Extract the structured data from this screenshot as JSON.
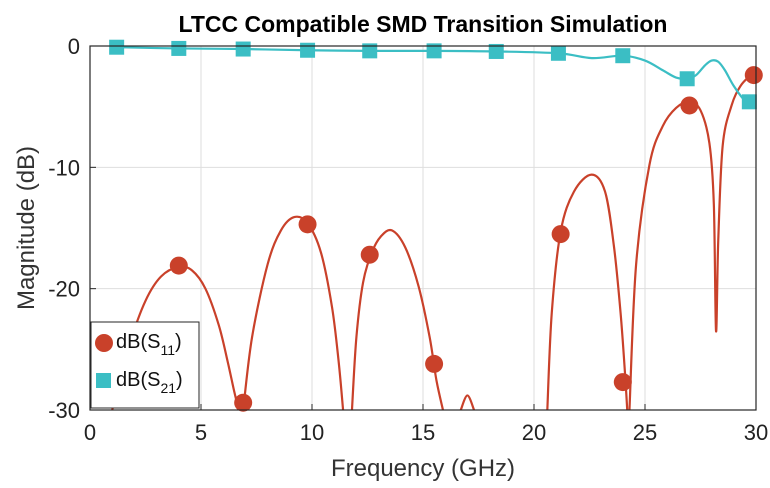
{
  "chart_data": {
    "type": "line",
    "title": "LTCC Compatible SMD Transition Simulation",
    "xlabel": "Frequency (GHz)",
    "ylabel": "Magnitude (dB)",
    "xlim": [
      0,
      30
    ],
    "ylim": [
      -30,
      0
    ],
    "xticks": [
      "0",
      "5",
      "10",
      "15",
      "20",
      "25",
      "30"
    ],
    "yticks": [
      "0",
      "-10",
      "-20",
      "-30"
    ],
    "grid": true,
    "legend_position": "bottom-left",
    "colors": {
      "s11": "#c9412a",
      "s21": "#3bbec4"
    },
    "series": [
      {
        "name": "dB(S11)",
        "legend_main": "dB(S",
        "legend_sub": "11",
        "legend_close": ")",
        "marker": "circle",
        "color": "#c9412a",
        "segments": [
          {
            "x": [
              1.0,
              1.8,
              2.5,
              3.2,
              4.0,
              4.6,
              5.2,
              5.8,
              6.2,
              6.5,
              6.7
            ],
            "y": [
              -30,
              -24.5,
              -21.0,
              -19.0,
              -18.2,
              -18.5,
              -20.0,
              -23.0,
              -26.0,
              -28.5,
              -30
            ]
          },
          {
            "x": [
              6.9,
              7.3,
              8.0,
              8.6,
              9.2,
              9.8,
              10.4,
              10.9,
              11.2,
              11.4
            ],
            "y": [
              -30,
              -24.0,
              -18.0,
              -15.2,
              -14.1,
              -14.6,
              -17.0,
              -21.5,
              -26.0,
              -30
            ]
          },
          {
            "x": [
              11.8,
              12.0,
              12.3,
              12.7,
              13.1,
              13.6,
              14.2,
              14.8,
              15.3,
              15.6,
              15.9
            ],
            "y": [
              -30,
              -24.0,
              -19.5,
              -17.0,
              -15.7,
              -15.2,
              -16.6,
              -19.8,
              -24.0,
              -27.5,
              -30
            ]
          },
          {
            "x": [
              16.7,
              17.0,
              17.3
            ],
            "y": [
              -30,
              -28.8,
              -30
            ]
          },
          {
            "x": [
              20.6,
              20.8,
              21.2,
              21.8,
              22.6,
              23.2,
              23.6,
              23.9,
              24.1,
              24.2
            ],
            "y": [
              -30,
              -22.0,
              -15.3,
              -12.0,
              -10.6,
              -12.0,
              -16.5,
              -22.0,
              -27.0,
              -30
            ]
          },
          {
            "x": [
              24.3,
              24.6,
              25.2,
              25.8,
              26.4,
              27.0,
              27.5,
              27.9,
              28.1,
              28.2,
              28.3,
              28.5,
              28.9,
              29.3,
              29.7,
              30.0
            ],
            "y": [
              -30,
              -18.0,
              -9.8,
              -6.6,
              -5.1,
              -4.6,
              -5.3,
              -8.0,
              -13.0,
              -23.5,
              -16.0,
              -8.2,
              -4.9,
              -3.3,
              -2.5,
              -2.0
            ]
          }
        ],
        "markers": {
          "x": [
            4.0,
            6.9,
            9.8,
            12.6,
            15.5,
            21.2,
            24.0,
            27.0,
            29.9
          ],
          "y": [
            -18.1,
            -29.4,
            -14.7,
            -17.2,
            -26.2,
            -15.5,
            -27.7,
            -4.9,
            -2.4
          ]
        }
      },
      {
        "name": "dB(S21)",
        "legend_main": "dB(S",
        "legend_sub": "21",
        "legend_close": ")",
        "marker": "square",
        "color": "#3bbec4",
        "segments": [
          {
            "x": [
              1.2,
              4.0,
              6.9,
              9.8,
              12.6,
              15.5,
              18.3,
              21.1,
              22.6,
              24.0,
              25.0,
              25.8,
              26.4,
              26.9,
              27.3,
              27.7,
              28.0,
              28.3,
              28.6,
              29.0,
              29.5,
              30.0
            ],
            "y": [
              -0.1,
              -0.2,
              -0.25,
              -0.35,
              -0.4,
              -0.4,
              -0.45,
              -0.6,
              -1.0,
              -0.8,
              -1.2,
              -2.0,
              -2.6,
              -2.7,
              -2.4,
              -1.6,
              -1.2,
              -1.3,
              -2.0,
              -3.3,
              -4.5,
              -5.0
            ]
          }
        ],
        "markers": {
          "x": [
            1.2,
            4.0,
            6.9,
            9.8,
            12.6,
            15.5,
            18.3,
            21.1,
            24.0,
            26.9,
            29.7
          ],
          "y": [
            -0.1,
            -0.2,
            -0.25,
            -0.35,
            -0.4,
            -0.4,
            -0.45,
            -0.6,
            -0.8,
            -2.7,
            -4.6
          ]
        }
      }
    ]
  }
}
